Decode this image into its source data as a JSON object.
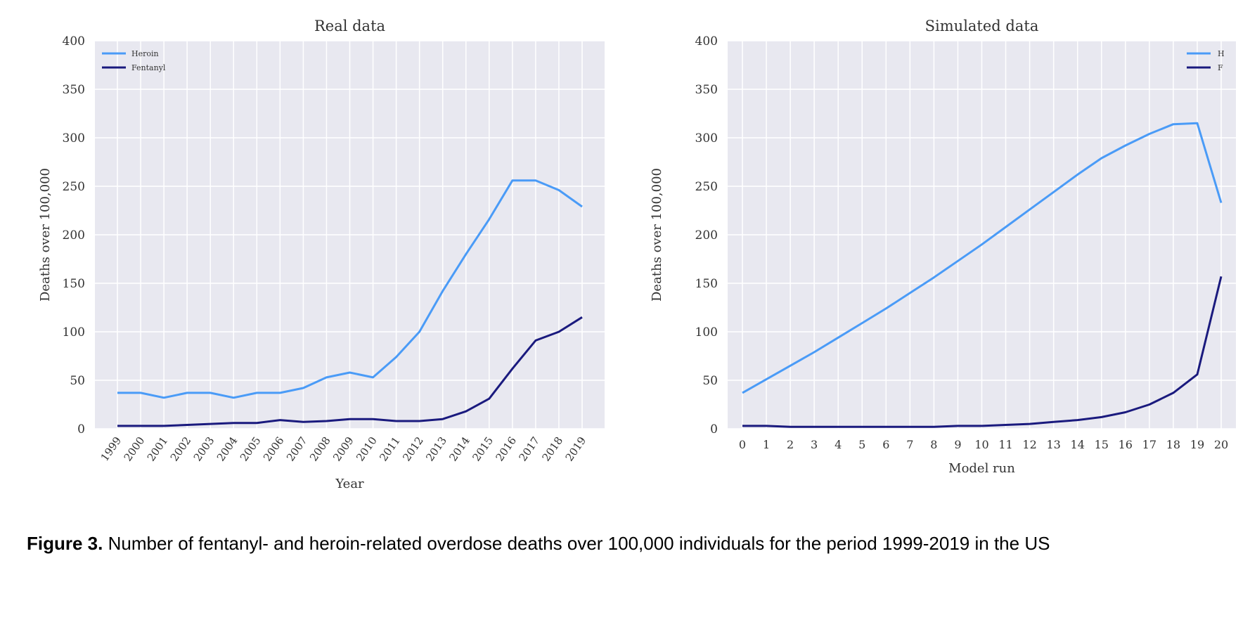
{
  "chart_data": [
    {
      "type": "line",
      "title": "Real data",
      "xlabel": "Year",
      "ylabel": "Deaths over 100,000",
      "ylim": [
        0,
        400
      ],
      "yticks": [
        "0",
        "50",
        "100",
        "150",
        "200",
        "250",
        "300",
        "350",
        "400"
      ],
      "x_tick_rotation": "rotated",
      "grid": true,
      "legend_position": "top-left",
      "categories": [
        "1999",
        "2000",
        "2001",
        "2002",
        "2003",
        "2004",
        "2005",
        "2006",
        "2007",
        "2008",
        "2009",
        "2010",
        "2011",
        "2012",
        "2013",
        "2014",
        "2015",
        "2016",
        "2017",
        "2018",
        "2019"
      ],
      "series": [
        {
          "name": "Heroin",
          "color": "#4a9bf7",
          "values": [
            37,
            37,
            32,
            37,
            37,
            32,
            37,
            37,
            42,
            53,
            58,
            53,
            74,
            100,
            142,
            180,
            216,
            256,
            256,
            246,
            229
          ]
        },
        {
          "name": "Fentanyl",
          "color": "#1a1a7e",
          "values": [
            3,
            3,
            3,
            4,
            5,
            6,
            6,
            9,
            7,
            8,
            10,
            10,
            8,
            8,
            10,
            18,
            31,
            62,
            91,
            100,
            115
          ]
        }
      ]
    },
    {
      "type": "line",
      "title": "Simulated data",
      "xlabel": "Model run",
      "ylabel": "Deaths over 100,000",
      "ylim": [
        0,
        400
      ],
      "yticks": [
        "0",
        "50",
        "100",
        "150",
        "200",
        "250",
        "300",
        "350",
        "400"
      ],
      "x_tick_rotation": "none",
      "grid": true,
      "legend_position": "top-right",
      "categories": [
        "0",
        "1",
        "2",
        "3",
        "4",
        "5",
        "6",
        "7",
        "8",
        "9",
        "10",
        "11",
        "12",
        "13",
        "14",
        "15",
        "16",
        "17",
        "18",
        "19",
        "20"
      ],
      "series": [
        {
          "name": "H",
          "color": "#4a9bf7",
          "values": [
            37,
            51,
            65,
            79,
            94,
            109,
            124,
            140,
            156,
            173,
            190,
            208,
            226,
            244,
            262,
            279,
            292,
            304,
            314,
            315,
            233
          ]
        },
        {
          "name": "F",
          "color": "#1a1a7e",
          "values": [
            3,
            3,
            2,
            2,
            2,
            2,
            2,
            2,
            2,
            3,
            3,
            4,
            5,
            7,
            9,
            12,
            17,
            25,
            37,
            56,
            157
          ]
        }
      ]
    }
  ],
  "caption": {
    "label": "Figure 3.",
    "text": " Number of fentanyl- and heroin-related overdose deaths over 100,000 individuals for the period 1999-2019 in the US"
  },
  "style": {
    "plot_bg": "#e8e8f0",
    "grid_color": "#ffffff",
    "text_color": "#333333"
  }
}
